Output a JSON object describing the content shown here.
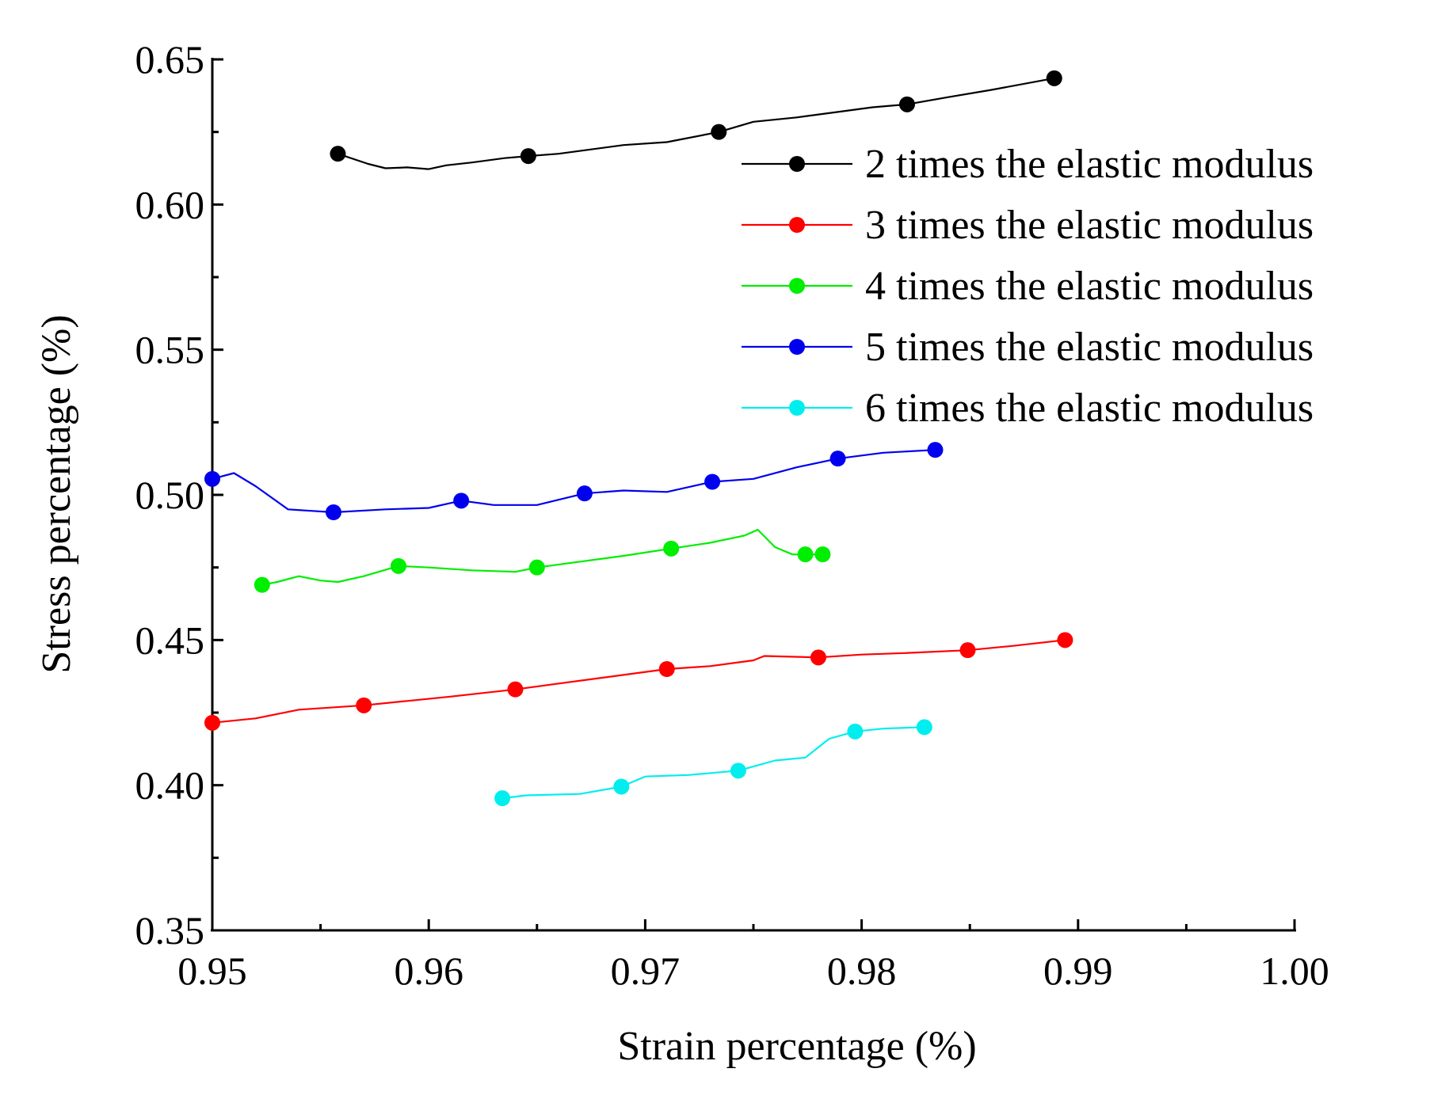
{
  "chart_data": {
    "type": "line",
    "title": "",
    "xlabel": "Strain percentage (%)",
    "ylabel": "Stress percentage (%)",
    "xlim": [
      0.95,
      1.0
    ],
    "ylim": [
      0.35,
      0.65
    ],
    "xticks": [
      "0.95",
      "0.96",
      "0.97",
      "0.98",
      "0.99",
      "1.00"
    ],
    "yticks": [
      "0.35",
      "0.40",
      "0.45",
      "0.50",
      "0.55",
      "0.60",
      "0.65"
    ],
    "legend_position": "top-right",
    "series": [
      {
        "name": "2 times the elastic modulus",
        "color": "#000000",
        "line": [
          [
            0.9558,
            0.6175
          ],
          [
            0.9572,
            0.614
          ],
          [
            0.958,
            0.6125
          ],
          [
            0.959,
            0.6128
          ],
          [
            0.96,
            0.6122
          ],
          [
            0.9608,
            0.6135
          ],
          [
            0.962,
            0.6145
          ],
          [
            0.9635,
            0.616
          ],
          [
            0.9646,
            0.6167
          ],
          [
            0.966,
            0.6175
          ],
          [
            0.9675,
            0.619
          ],
          [
            0.969,
            0.6205
          ],
          [
            0.971,
            0.6215
          ],
          [
            0.9734,
            0.625
          ],
          [
            0.975,
            0.6285
          ],
          [
            0.977,
            0.63
          ],
          [
            0.979,
            0.632
          ],
          [
            0.9805,
            0.6335
          ],
          [
            0.9821,
            0.6345
          ],
          [
            0.984,
            0.637
          ],
          [
            0.986,
            0.6395
          ],
          [
            0.9889,
            0.6435
          ]
        ],
        "markers": [
          [
            0.9558,
            0.6175
          ],
          [
            0.9646,
            0.6167
          ],
          [
            0.9734,
            0.625
          ],
          [
            0.9821,
            0.6345
          ],
          [
            0.9889,
            0.6435
          ]
        ]
      },
      {
        "name": "3 times the elastic modulus",
        "color": "#ff0000",
        "line": [
          [
            0.95,
            0.4215
          ],
          [
            0.952,
            0.423
          ],
          [
            0.954,
            0.426
          ],
          [
            0.957,
            0.4275
          ],
          [
            0.959,
            0.429
          ],
          [
            0.961,
            0.4305
          ],
          [
            0.964,
            0.433
          ],
          [
            0.966,
            0.435
          ],
          [
            0.968,
            0.437
          ],
          [
            0.971,
            0.44
          ],
          [
            0.973,
            0.441
          ],
          [
            0.975,
            0.443
          ],
          [
            0.9755,
            0.4445
          ],
          [
            0.978,
            0.444
          ],
          [
            0.98,
            0.445
          ],
          [
            0.982,
            0.4455
          ],
          [
            0.9849,
            0.4465
          ],
          [
            0.987,
            0.448
          ],
          [
            0.9894,
            0.45
          ]
        ],
        "markers": [
          [
            0.95,
            0.4215
          ],
          [
            0.957,
            0.4275
          ],
          [
            0.964,
            0.433
          ],
          [
            0.971,
            0.44
          ],
          [
            0.978,
            0.444
          ],
          [
            0.9849,
            0.4465
          ],
          [
            0.9894,
            0.45
          ]
        ]
      },
      {
        "name": "4 times the elastic modulus",
        "color": "#00ee00",
        "line": [
          [
            0.9523,
            0.469
          ],
          [
            0.953,
            0.47
          ],
          [
            0.954,
            0.472
          ],
          [
            0.955,
            0.4705
          ],
          [
            0.9558,
            0.47
          ],
          [
            0.957,
            0.472
          ],
          [
            0.9586,
            0.4755
          ],
          [
            0.96,
            0.475
          ],
          [
            0.962,
            0.474
          ],
          [
            0.964,
            0.4735
          ],
          [
            0.965,
            0.475
          ],
          [
            0.967,
            0.477
          ],
          [
            0.969,
            0.479
          ],
          [
            0.9712,
            0.4815
          ],
          [
            0.973,
            0.4835
          ],
          [
            0.9746,
            0.486
          ],
          [
            0.9752,
            0.488
          ],
          [
            0.976,
            0.482
          ],
          [
            0.9768,
            0.4795
          ],
          [
            0.9782,
            0.4795
          ]
        ],
        "markers": [
          [
            0.9523,
            0.469
          ],
          [
            0.9586,
            0.4755
          ],
          [
            0.965,
            0.475
          ],
          [
            0.9712,
            0.4815
          ],
          [
            0.9774,
            0.4795
          ],
          [
            0.9782,
            0.4795
          ]
        ]
      },
      {
        "name": "5 times the elastic modulus",
        "color": "#0000ee",
        "line": [
          [
            0.95,
            0.5055
          ],
          [
            0.951,
            0.5075
          ],
          [
            0.952,
            0.503
          ],
          [
            0.9535,
            0.495
          ],
          [
            0.9556,
            0.494
          ],
          [
            0.958,
            0.495
          ],
          [
            0.96,
            0.4955
          ],
          [
            0.9615,
            0.498
          ],
          [
            0.963,
            0.4965
          ],
          [
            0.965,
            0.4965
          ],
          [
            0.9672,
            0.5005
          ],
          [
            0.969,
            0.5015
          ],
          [
            0.971,
            0.501
          ],
          [
            0.9731,
            0.5045
          ],
          [
            0.975,
            0.5055
          ],
          [
            0.977,
            0.5095
          ],
          [
            0.9789,
            0.5125
          ],
          [
            0.981,
            0.5145
          ],
          [
            0.9834,
            0.5155
          ]
        ],
        "markers": [
          [
            0.95,
            0.5055
          ],
          [
            0.9556,
            0.494
          ],
          [
            0.9615,
            0.498
          ],
          [
            0.9672,
            0.5005
          ],
          [
            0.9731,
            0.5045
          ],
          [
            0.9789,
            0.5125
          ],
          [
            0.9834,
            0.5155
          ]
        ]
      },
      {
        "name": "6 times the elastic modulus",
        "color": "#00eeee",
        "line": [
          [
            0.9634,
            0.3955
          ],
          [
            0.9645,
            0.3965
          ],
          [
            0.967,
            0.397
          ],
          [
            0.9689,
            0.3995
          ],
          [
            0.97,
            0.403
          ],
          [
            0.972,
            0.4035
          ],
          [
            0.9743,
            0.405
          ],
          [
            0.976,
            0.4085
          ],
          [
            0.9774,
            0.4095
          ],
          [
            0.9785,
            0.416
          ],
          [
            0.9797,
            0.4185
          ],
          [
            0.981,
            0.4195
          ],
          [
            0.9829,
            0.42
          ]
        ],
        "markers": [
          [
            0.9634,
            0.3955
          ],
          [
            0.9689,
            0.3995
          ],
          [
            0.9743,
            0.405
          ],
          [
            0.9797,
            0.4185
          ],
          [
            0.9829,
            0.42
          ]
        ]
      }
    ]
  }
}
